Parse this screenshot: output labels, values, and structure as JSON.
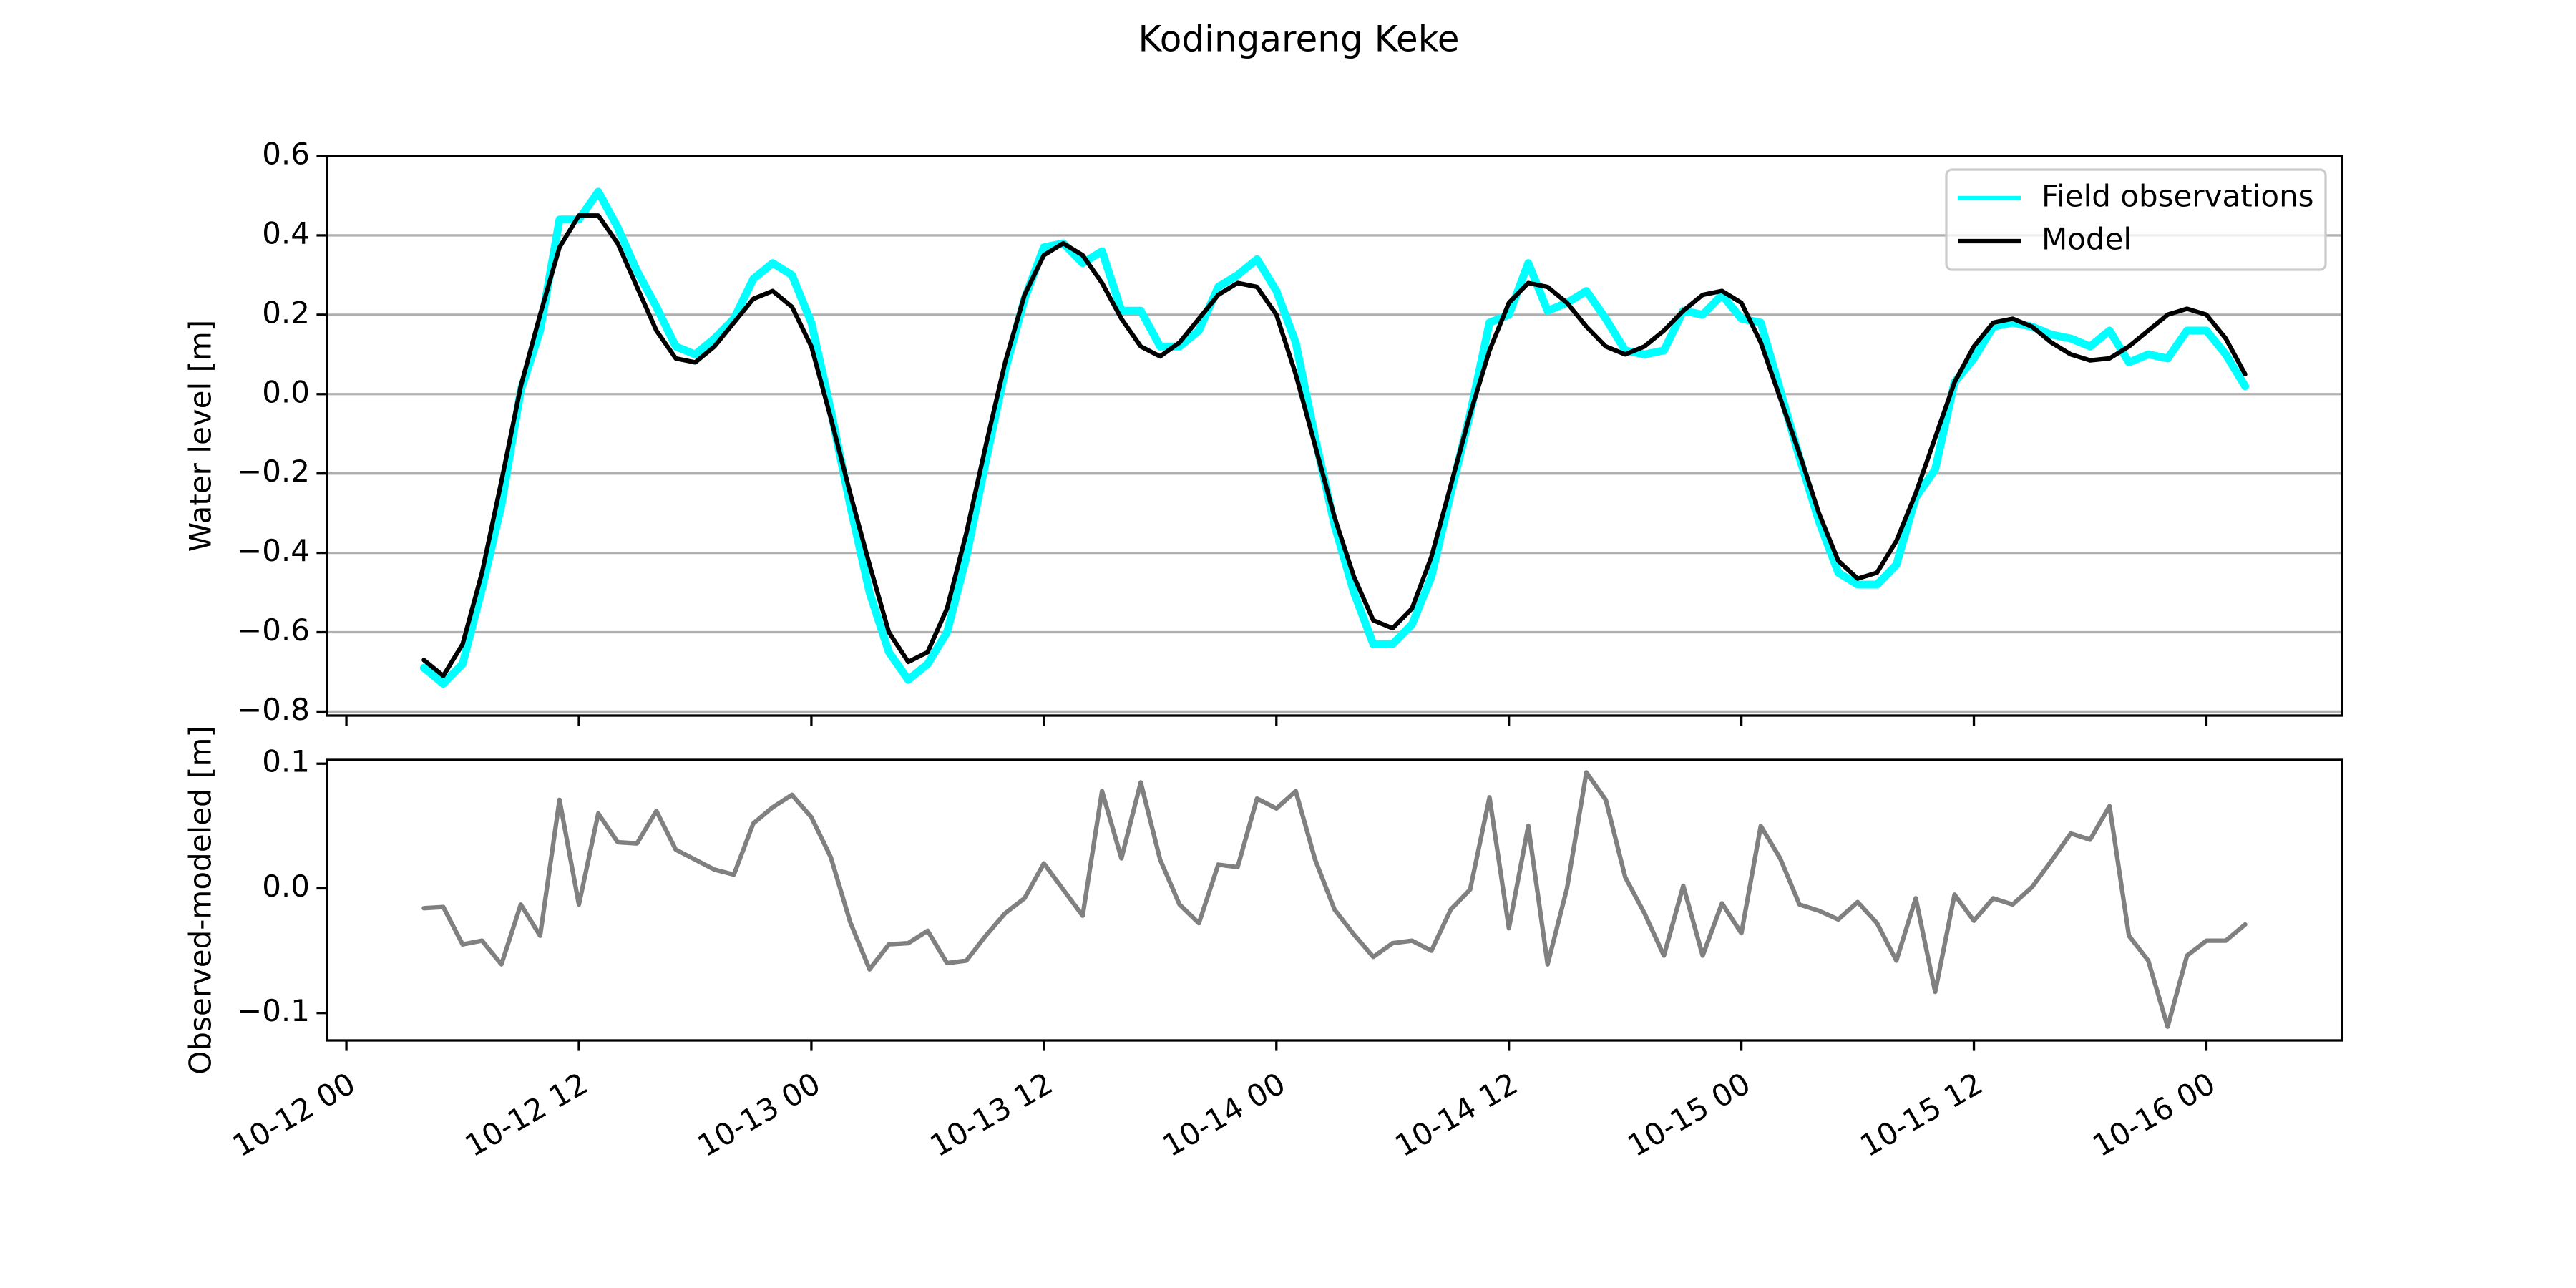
{
  "chart_data": [
    {
      "type": "line",
      "title": "Kodingareng Keke",
      "ylabel": "Water level [m]",
      "x": [
        "10-12 04",
        "10-12 05",
        "10-12 06",
        "10-12 07",
        "10-12 08",
        "10-12 09",
        "10-12 10",
        "10-12 11",
        "10-12 12",
        "10-12 13",
        "10-12 14",
        "10-12 15",
        "10-12 16",
        "10-12 17",
        "10-12 18",
        "10-12 19",
        "10-12 20",
        "10-12 21",
        "10-12 22",
        "10-12 23",
        "10-13 00",
        "10-13 01",
        "10-13 02",
        "10-13 03",
        "10-13 04",
        "10-13 05",
        "10-13 06",
        "10-13 07",
        "10-13 08",
        "10-13 09",
        "10-13 10",
        "10-13 11",
        "10-13 12",
        "10-13 13",
        "10-13 14",
        "10-13 15",
        "10-13 16",
        "10-13 17",
        "10-13 18",
        "10-13 19",
        "10-13 20",
        "10-13 21",
        "10-13 22",
        "10-13 23",
        "10-14 00",
        "10-14 01",
        "10-14 02",
        "10-14 03",
        "10-14 04",
        "10-14 05",
        "10-14 06",
        "10-14 07",
        "10-14 08",
        "10-14 09",
        "10-14 10",
        "10-14 11",
        "10-14 12",
        "10-14 13",
        "10-14 14",
        "10-14 15",
        "10-14 16",
        "10-14 17",
        "10-14 18",
        "10-14 19",
        "10-14 20",
        "10-14 21",
        "10-14 22",
        "10-14 23",
        "10-15 00",
        "10-15 01",
        "10-15 02",
        "10-15 03",
        "10-15 04",
        "10-15 05",
        "10-15 06",
        "10-15 07",
        "10-15 08",
        "10-15 09",
        "10-15 10",
        "10-15 11",
        "10-15 12",
        "10-15 13",
        "10-15 14",
        "10-15 15",
        "10-15 16",
        "10-15 17",
        "10-15 18",
        "10-15 19",
        "10-15 20",
        "10-15 21",
        "10-15 22",
        "10-15 23",
        "10-16 00",
        "10-16 01",
        "10-16 02"
      ],
      "series": [
        {
          "name": "Field observations",
          "color": "#00ffff",
          "values": [
            -0.69,
            -0.73,
            -0.68,
            -0.49,
            -0.28,
            0.01,
            0.16,
            0.44,
            0.44,
            0.51,
            0.42,
            0.31,
            0.22,
            0.12,
            0.1,
            0.14,
            0.19,
            0.29,
            0.33,
            0.3,
            0.18,
            -0.04,
            -0.28,
            -0.5,
            -0.65,
            -0.72,
            -0.68,
            -0.6,
            -0.41,
            -0.17,
            0.06,
            0.24,
            0.37,
            0.38,
            0.33,
            0.36,
            0.21,
            0.21,
            0.12,
            0.12,
            0.16,
            0.27,
            0.3,
            0.34,
            0.26,
            0.13,
            -0.11,
            -0.33,
            -0.5,
            -0.63,
            -0.63,
            -0.58,
            -0.46,
            -0.25,
            -0.05,
            0.18,
            0.2,
            0.33,
            0.21,
            0.23,
            0.26,
            0.19,
            0.11,
            0.1,
            0.11,
            0.21,
            0.2,
            0.25,
            0.19,
            0.18,
            0.01,
            -0.16,
            -0.32,
            -0.45,
            -0.48,
            -0.48,
            -0.43,
            -0.26,
            -0.19,
            0.03,
            0.09,
            0.17,
            0.18,
            0.17,
            0.15,
            0.14,
            0.12,
            0.16,
            0.08,
            0.1,
            0.09,
            0.16,
            0.16,
            0.1,
            0.02
          ]
        },
        {
          "name": "Model",
          "color": "#000000",
          "values": [
            -0.67,
            -0.71,
            -0.63,
            -0.45,
            -0.22,
            0.02,
            0.2,
            0.37,
            0.45,
            0.45,
            0.38,
            0.27,
            0.16,
            0.09,
            0.08,
            0.12,
            0.18,
            0.24,
            0.26,
            0.22,
            0.12,
            -0.06,
            -0.25,
            -0.43,
            -0.6,
            -0.675,
            -0.65,
            -0.54,
            -0.35,
            -0.13,
            0.08,
            0.25,
            0.35,
            0.38,
            0.35,
            0.28,
            0.19,
            0.12,
            0.095,
            0.13,
            0.19,
            0.25,
            0.28,
            0.27,
            0.2,
            0.05,
            -0.13,
            -0.31,
            -0.46,
            -0.57,
            -0.59,
            -0.54,
            -0.41,
            -0.23,
            -0.05,
            0.11,
            0.23,
            0.28,
            0.27,
            0.23,
            0.17,
            0.12,
            0.1,
            0.12,
            0.16,
            0.21,
            0.25,
            0.26,
            0.23,
            0.13,
            -0.01,
            -0.15,
            -0.3,
            -0.42,
            -0.465,
            -0.45,
            -0.37,
            -0.25,
            -0.11,
            0.03,
            0.12,
            0.18,
            0.19,
            0.17,
            0.13,
            0.1,
            0.085,
            0.09,
            0.12,
            0.16,
            0.2,
            0.215,
            0.2,
            0.14,
            0.05
          ]
        }
      ],
      "xlim": [
        "10-11 23",
        "10-16 07"
      ],
      "xticks": [
        "10-12 00",
        "10-12 12",
        "10-13 00",
        "10-13 12",
        "10-14 00",
        "10-14 12",
        "10-15 00",
        "10-15 12",
        "10-16 00"
      ],
      "ylim": [
        -0.81,
        0.6
      ],
      "yticks": [
        {
          "value": -0.8,
          "label": "−0.8"
        },
        {
          "value": -0.6,
          "label": "−0.6"
        },
        {
          "value": -0.4,
          "label": "−0.4"
        },
        {
          "value": -0.2,
          "label": "−0.2"
        },
        {
          "value": 0,
          "label": "0.0"
        },
        0.2,
        0.4,
        0.6
      ],
      "grid": true,
      "legend": "upper right"
    },
    {
      "type": "line",
      "ylabel": "Observed-modeled [m]",
      "color": "#808080",
      "x": [
        "10-12 04",
        "10-12 05",
        "10-12 06",
        "10-12 07",
        "10-12 08",
        "10-12 09",
        "10-12 10",
        "10-12 11",
        "10-12 12",
        "10-12 13",
        "10-12 14",
        "10-12 15",
        "10-12 16",
        "10-12 17",
        "10-12 18",
        "10-12 19",
        "10-12 20",
        "10-12 21",
        "10-12 22",
        "10-12 23",
        "10-13 00",
        "10-13 01",
        "10-13 02",
        "10-13 03",
        "10-13 04",
        "10-13 05",
        "10-13 06",
        "10-13 07",
        "10-13 08",
        "10-13 09",
        "10-13 10",
        "10-13 11",
        "10-13 12",
        "10-13 13",
        "10-13 14",
        "10-13 15",
        "10-13 16",
        "10-13 17",
        "10-13 18",
        "10-13 19",
        "10-13 20",
        "10-13 21",
        "10-13 22",
        "10-13 23",
        "10-14 00",
        "10-14 01",
        "10-14 02",
        "10-14 03",
        "10-14 04",
        "10-14 05",
        "10-14 06",
        "10-14 07",
        "10-14 08",
        "10-14 09",
        "10-14 10",
        "10-14 11",
        "10-14 12",
        "10-14 13",
        "10-14 14",
        "10-14 15",
        "10-14 16",
        "10-14 17",
        "10-14 18",
        "10-14 19",
        "10-14 20",
        "10-14 21",
        "10-14 22",
        "10-14 23",
        "10-15 00",
        "10-15 01",
        "10-15 02",
        "10-15 03",
        "10-15 04",
        "10-15 05",
        "10-15 06",
        "10-15 07",
        "10-15 08",
        "10-15 09",
        "10-15 10",
        "10-15 11",
        "10-15 12",
        "10-15 13",
        "10-15 14",
        "10-15 15",
        "10-15 16",
        "10-15 17",
        "10-15 18",
        "10-15 19",
        "10-15 20",
        "10-15 21",
        "10-15 22",
        "10-15 23",
        "10-16 00",
        "10-16 01",
        "10-16 02"
      ],
      "values": [
        -0.016,
        -0.015,
        -0.045,
        -0.042,
        -0.061,
        -0.013,
        -0.038,
        0.071,
        -0.013,
        0.06,
        0.037,
        0.036,
        0.062,
        0.031,
        0.023,
        0.015,
        0.011,
        0.052,
        0.065,
        0.075,
        0.057,
        0.025,
        -0.027,
        -0.065,
        -0.045,
        -0.044,
        -0.034,
        -0.06,
        -0.058,
        -0.038,
        -0.02,
        -0.008,
        0.02,
        -0.001,
        -0.022,
        0.078,
        0.024,
        0.085,
        0.023,
        -0.013,
        -0.028,
        0.019,
        0.017,
        0.072,
        0.064,
        0.078,
        0.023,
        -0.017,
        -0.037,
        -0.055,
        -0.044,
        -0.042,
        -0.05,
        -0.017,
        -0.001,
        0.073,
        -0.032,
        0.05,
        -0.061,
        0.0,
        0.093,
        0.071,
        0.009,
        -0.02,
        -0.054,
        0.002,
        -0.054,
        -0.012,
        -0.036,
        0.05,
        0.024,
        -0.013,
        -0.018,
        -0.025,
        -0.011,
        -0.028,
        -0.058,
        -0.008,
        -0.083,
        -0.005,
        -0.026,
        -0.008,
        -0.013,
        0.001,
        0.022,
        0.044,
        0.039,
        0.066,
        -0.038,
        -0.058,
        -0.111,
        -0.054,
        -0.042,
        -0.042,
        -0.029
      ],
      "xlim": [
        "10-11 23",
        "10-16 07"
      ],
      "xticks": [
        "10-12 00",
        "10-12 12",
        "10-13 00",
        "10-13 12",
        "10-14 00",
        "10-14 12",
        "10-15 00",
        "10-15 12",
        "10-16 00"
      ],
      "ylim": [
        -0.122,
        0.103
      ],
      "yticks": [
        {
          "value": -0.1,
          "label": "−0.1"
        },
        {
          "value": 0,
          "label": "0.0"
        },
        0.1
      ]
    }
  ]
}
